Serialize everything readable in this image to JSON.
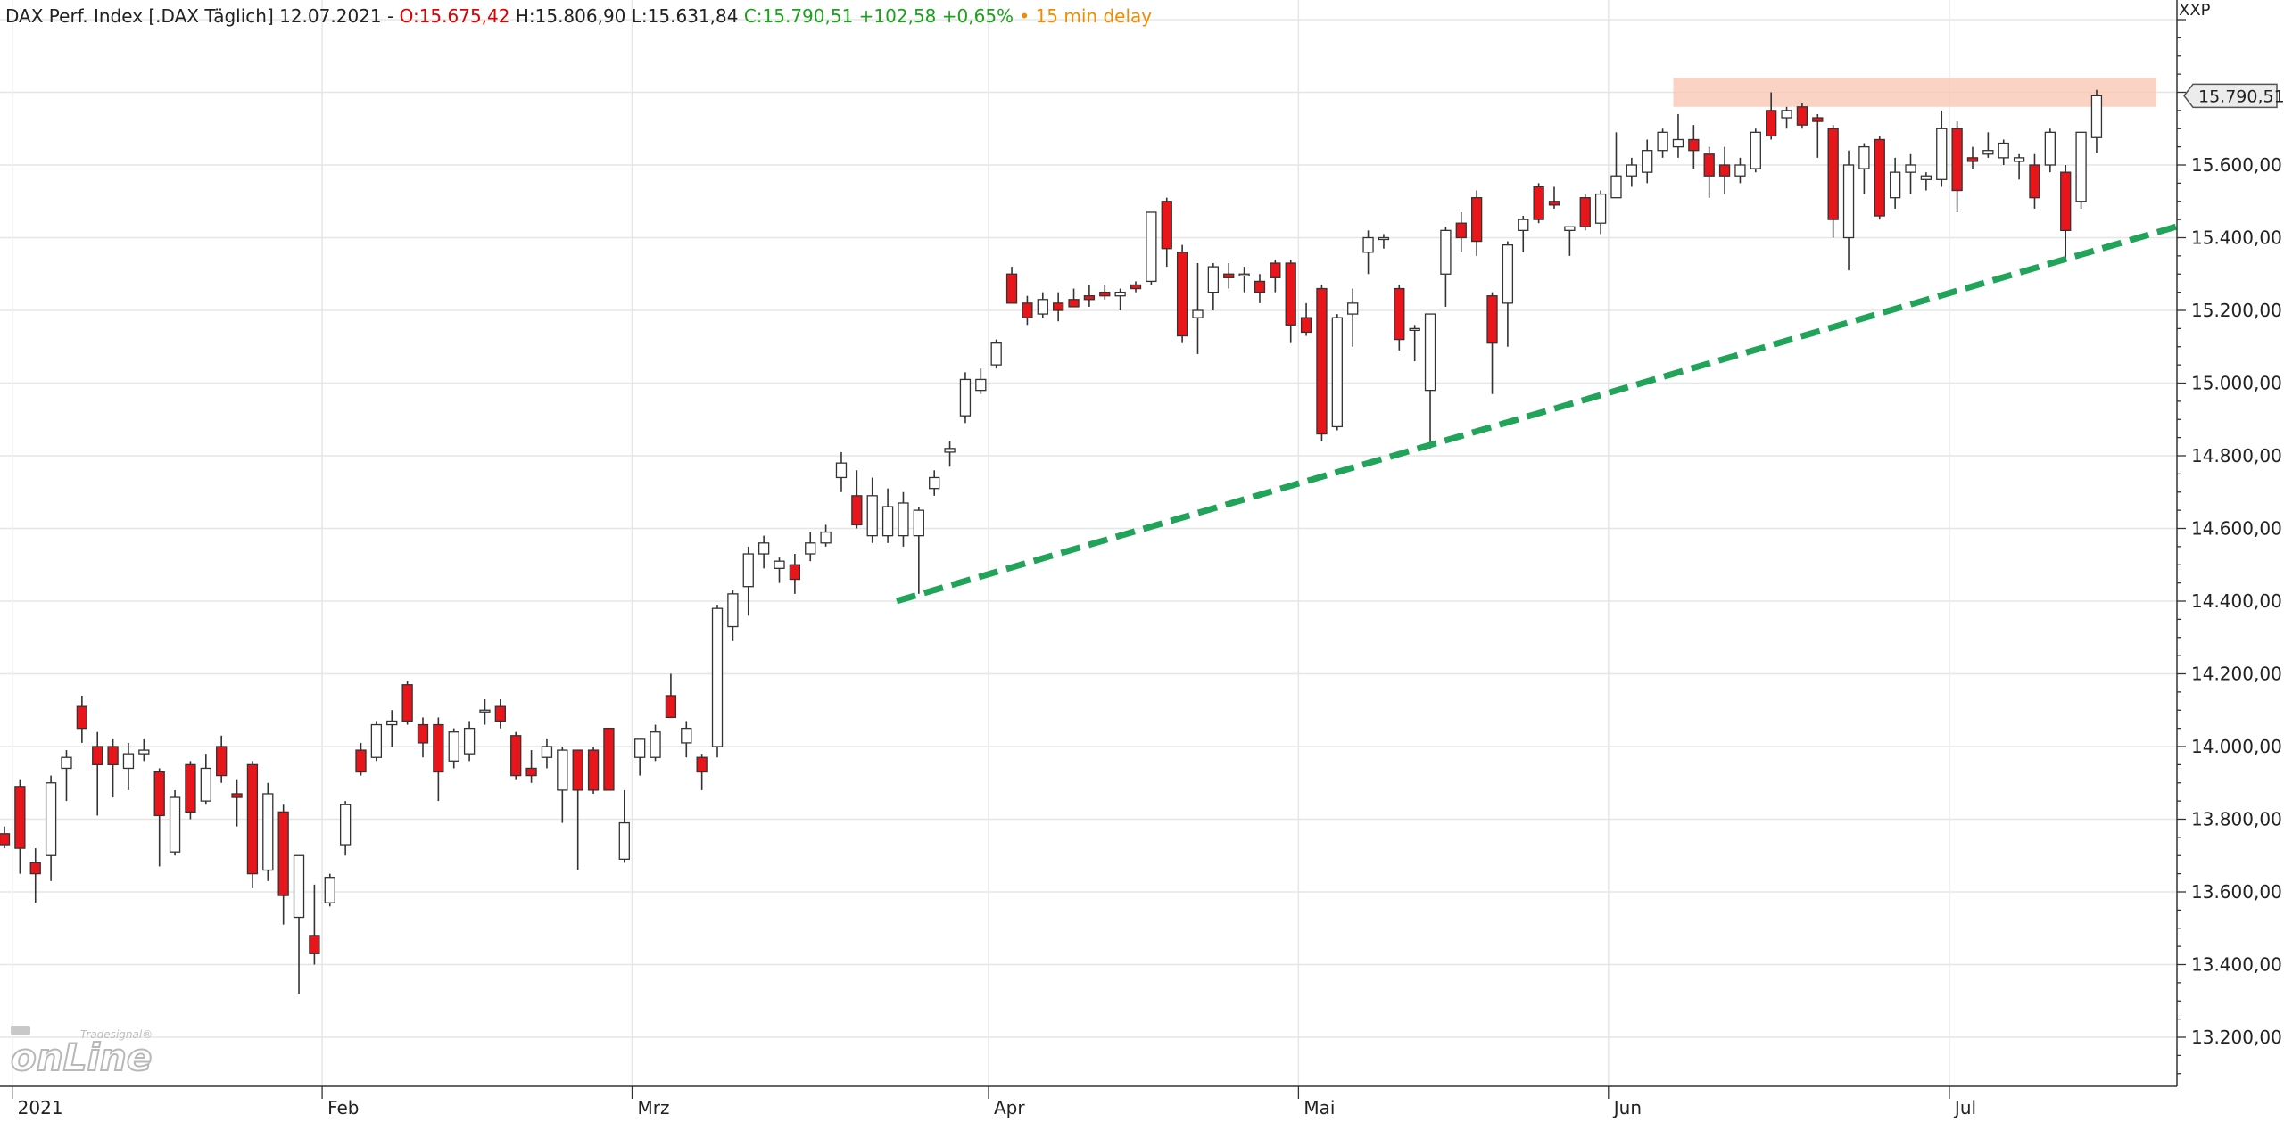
{
  "header": {
    "instrument": "DAX Perf. Index [.DAX Täglich] 12.07.2021 -",
    "open": "O:15.675,42",
    "high": "H:15.806,90",
    "low": "L:15.631,84",
    "close": "C:15.790,51 +102,58 +0,65%",
    "delay": "• 15 min delay"
  },
  "axis_title": "XXP",
  "last_price_badge": "15.790,51",
  "logo": {
    "small": "Tradesignal®",
    "big": "onLine"
  },
  "colors": {
    "up_fill": "#ffffff",
    "down_fill": "#e8151b",
    "wick": "#333333",
    "grid": "#e6e6e6",
    "trendline": "#21a35a",
    "resistance_zone": "#f9c4b0",
    "header_open": "#e00000",
    "header_close": "#1aa31a",
    "header_delay": "#f08c00"
  },
  "chart_data": {
    "type": "candlestick",
    "title": "DAX Perf. Index [.DAX Täglich]",
    "ylim": [
      13080,
      16100
    ],
    "yticks": [
      13200,
      13400,
      13600,
      13800,
      14000,
      14200,
      14400,
      14600,
      14800,
      15000,
      15200,
      15400,
      15600
    ],
    "ytick_labels": [
      "13.200,00",
      "13.400,00",
      "13.600,00",
      "13.800,00",
      "14.000,00",
      "14.200,00",
      "14.400,00",
      "14.600,00",
      "14.800,00",
      "15.000,00",
      "15.200,00",
      "15.400,00",
      "15.600,00"
    ],
    "xticks": [
      {
        "label": "2021",
        "index": 1
      },
      {
        "label": "Feb",
        "index": 21
      },
      {
        "label": "Mrz",
        "index": 41
      },
      {
        "label": "Apr",
        "index": 64
      },
      {
        "label": "Mai",
        "index": 84
      },
      {
        "label": "Jun",
        "index": 104
      },
      {
        "label": "Jul",
        "index": 126
      }
    ],
    "grid": true,
    "candles": [
      {
        "o": 13760,
        "h": 13780,
        "l": 13720,
        "c": 13730
      },
      {
        "o": 13890,
        "h": 13910,
        "l": 13650,
        "c": 13720
      },
      {
        "o": 13680,
        "h": 13720,
        "l": 13570,
        "c": 13650
      },
      {
        "o": 13700,
        "h": 13920,
        "l": 13630,
        "c": 13900
      },
      {
        "o": 13940,
        "h": 13990,
        "l": 13850,
        "c": 13970
      },
      {
        "o": 14110,
        "h": 14140,
        "l": 14010,
        "c": 14050
      },
      {
        "o": 14000,
        "h": 14040,
        "l": 13810,
        "c": 13950
      },
      {
        "o": 14000,
        "h": 14020,
        "l": 13860,
        "c": 13950
      },
      {
        "o": 13940,
        "h": 14010,
        "l": 13880,
        "c": 13980
      },
      {
        "o": 13980,
        "h": 14020,
        "l": 13960,
        "c": 13990
      },
      {
        "o": 13930,
        "h": 13940,
        "l": 13670,
        "c": 13810
      },
      {
        "o": 13710,
        "h": 13880,
        "l": 13700,
        "c": 13860
      },
      {
        "o": 13950,
        "h": 13960,
        "l": 13800,
        "c": 13820
      },
      {
        "o": 13850,
        "h": 13980,
        "l": 13840,
        "c": 13940
      },
      {
        "o": 14000,
        "h": 14030,
        "l": 13900,
        "c": 13920
      },
      {
        "o": 13870,
        "h": 13910,
        "l": 13780,
        "c": 13860
      },
      {
        "o": 13950,
        "h": 13960,
        "l": 13610,
        "c": 13650
      },
      {
        "o": 13660,
        "h": 13900,
        "l": 13630,
        "c": 13870
      },
      {
        "o": 13820,
        "h": 13840,
        "l": 13510,
        "c": 13590
      },
      {
        "o": 13530,
        "h": 13670,
        "l": 13320,
        "c": 13700
      },
      {
        "o": 13480,
        "h": 13620,
        "l": 13400,
        "c": 13430
      },
      {
        "o": 13570,
        "h": 13650,
        "l": 13560,
        "c": 13640
      },
      {
        "o": 13730,
        "h": 13850,
        "l": 13700,
        "c": 13840
      },
      {
        "o": 13990,
        "h": 14010,
        "l": 13920,
        "c": 13930
      },
      {
        "o": 13970,
        "h": 14070,
        "l": 13960,
        "c": 14060
      },
      {
        "o": 14060,
        "h": 14100,
        "l": 14000,
        "c": 14070
      },
      {
        "o": 14170,
        "h": 14180,
        "l": 14060,
        "c": 14070
      },
      {
        "o": 14060,
        "h": 14080,
        "l": 13970,
        "c": 14010
      },
      {
        "o": 14060,
        "h": 14080,
        "l": 13850,
        "c": 13930
      },
      {
        "o": 13960,
        "h": 14050,
        "l": 13940,
        "c": 14040
      },
      {
        "o": 13980,
        "h": 14070,
        "l": 13960,
        "c": 14050
      },
      {
        "o": 14100,
        "h": 14130,
        "l": 14060,
        "c": 14100
      },
      {
        "o": 14110,
        "h": 14130,
        "l": 14050,
        "c": 14070
      },
      {
        "o": 14030,
        "h": 14040,
        "l": 13910,
        "c": 13920
      },
      {
        "o": 13940,
        "h": 13990,
        "l": 13900,
        "c": 13920
      },
      {
        "o": 13970,
        "h": 14020,
        "l": 13940,
        "c": 14000
      },
      {
        "o": 13880,
        "h": 14000,
        "l": 13790,
        "c": 13990
      },
      {
        "o": 13990,
        "h": 13990,
        "l": 13660,
        "c": 13880
      },
      {
        "o": 13990,
        "h": 14000,
        "l": 13870,
        "c": 13880
      },
      {
        "o": 14050,
        "h": 14050,
        "l": 13880,
        "c": 13880
      },
      {
        "o": 13690,
        "h": 13880,
        "l": 13680,
        "c": 13790
      },
      {
        "o": 13970,
        "h": 14010,
        "l": 13920,
        "c": 14020
      },
      {
        "o": 13970,
        "h": 14060,
        "l": 13960,
        "c": 14040
      },
      {
        "o": 14140,
        "h": 14200,
        "l": 14080,
        "c": 14080
      },
      {
        "o": 14010,
        "h": 14070,
        "l": 13970,
        "c": 14050
      },
      {
        "o": 13970,
        "h": 13980,
        "l": 13880,
        "c": 13930
      },
      {
        "o": 14000,
        "h": 14390,
        "l": 13970,
        "c": 14380
      },
      {
        "o": 14330,
        "h": 14430,
        "l": 14290,
        "c": 14420
      },
      {
        "o": 14440,
        "h": 14550,
        "l": 14360,
        "c": 14530
      },
      {
        "o": 14530,
        "h": 14580,
        "l": 14490,
        "c": 14560
      },
      {
        "o": 14490,
        "h": 14520,
        "l": 14450,
        "c": 14510
      },
      {
        "o": 14500,
        "h": 14530,
        "l": 14420,
        "c": 14460
      },
      {
        "o": 14530,
        "h": 14590,
        "l": 14510,
        "c": 14560
      },
      {
        "o": 14560,
        "h": 14610,
        "l": 14550,
        "c": 14590
      },
      {
        "o": 14740,
        "h": 14810,
        "l": 14700,
        "c": 14780
      },
      {
        "o": 14690,
        "h": 14760,
        "l": 14600,
        "c": 14610
      },
      {
        "o": 14580,
        "h": 14740,
        "l": 14560,
        "c": 14690
      },
      {
        "o": 14580,
        "h": 14710,
        "l": 14560,
        "c": 14660
      },
      {
        "o": 14580,
        "h": 14700,
        "l": 14550,
        "c": 14670
      },
      {
        "o": 14580,
        "h": 14660,
        "l": 14420,
        "c": 14650
      },
      {
        "o": 14710,
        "h": 14760,
        "l": 14690,
        "c": 14740
      },
      {
        "o": 14810,
        "h": 14840,
        "l": 14770,
        "c": 14820
      },
      {
        "o": 14910,
        "h": 15030,
        "l": 14890,
        "c": 15010
      },
      {
        "o": 14980,
        "h": 15040,
        "l": 14970,
        "c": 15010
      },
      {
        "o": 15050,
        "h": 15120,
        "l": 15040,
        "c": 15110
      },
      {
        "o": 15300,
        "h": 15320,
        "l": 15220,
        "c": 15220
      },
      {
        "o": 15220,
        "h": 15240,
        "l": 15160,
        "c": 15180
      },
      {
        "o": 15190,
        "h": 15250,
        "l": 15180,
        "c": 15230
      },
      {
        "o": 15220,
        "h": 15250,
        "l": 15170,
        "c": 15200
      },
      {
        "o": 15230,
        "h": 15260,
        "l": 15210,
        "c": 15210
      },
      {
        "o": 15240,
        "h": 15270,
        "l": 15210,
        "c": 15230
      },
      {
        "o": 15250,
        "h": 15270,
        "l": 15230,
        "c": 15240
      },
      {
        "o": 15240,
        "h": 15260,
        "l": 15200,
        "c": 15250
      },
      {
        "o": 15270,
        "h": 15280,
        "l": 15250,
        "c": 15260
      },
      {
        "o": 15280,
        "h": 15470,
        "l": 15270,
        "c": 15470
      },
      {
        "o": 15500,
        "h": 15510,
        "l": 15320,
        "c": 15370
      },
      {
        "o": 15360,
        "h": 15380,
        "l": 15110,
        "c": 15130
      },
      {
        "o": 15180,
        "h": 15330,
        "l": 15080,
        "c": 15200
      },
      {
        "o": 15250,
        "h": 15330,
        "l": 15200,
        "c": 15320
      },
      {
        "o": 15300,
        "h": 15330,
        "l": 15260,
        "c": 15290
      },
      {
        "o": 15300,
        "h": 15320,
        "l": 15250,
        "c": 15300
      },
      {
        "o": 15280,
        "h": 15300,
        "l": 15220,
        "c": 15250
      },
      {
        "o": 15330,
        "h": 15340,
        "l": 15250,
        "c": 15290
      },
      {
        "o": 15330,
        "h": 15340,
        "l": 15110,
        "c": 15160
      },
      {
        "o": 15180,
        "h": 15220,
        "l": 15130,
        "c": 15140
      },
      {
        "o": 15260,
        "h": 15270,
        "l": 14840,
        "c": 14860
      },
      {
        "o": 14880,
        "h": 15190,
        "l": 14870,
        "c": 15180
      },
      {
        "o": 15190,
        "h": 15260,
        "l": 15100,
        "c": 15220
      },
      {
        "o": 15360,
        "h": 15420,
        "l": 15300,
        "c": 15400
      },
      {
        "o": 15400,
        "h": 15410,
        "l": 15370,
        "c": 15400
      },
      {
        "o": 15260,
        "h": 15270,
        "l": 15090,
        "c": 15120
      },
      {
        "o": 15150,
        "h": 15160,
        "l": 15060,
        "c": 15150
      },
      {
        "o": 14980,
        "h": 15190,
        "l": 14820,
        "c": 15190
      },
      {
        "o": 15300,
        "h": 15430,
        "l": 15210,
        "c": 15420
      },
      {
        "o": 15440,
        "h": 15470,
        "l": 15360,
        "c": 15400
      },
      {
        "o": 15510,
        "h": 15530,
        "l": 15350,
        "c": 15390
      },
      {
        "o": 15240,
        "h": 15250,
        "l": 14970,
        "c": 15110
      },
      {
        "o": 15220,
        "h": 15390,
        "l": 15100,
        "c": 15380
      },
      {
        "o": 15420,
        "h": 15460,
        "l": 15360,
        "c": 15450
      },
      {
        "o": 15540,
        "h": 15550,
        "l": 15440,
        "c": 15450
      },
      {
        "o": 15500,
        "h": 15540,
        "l": 15480,
        "c": 15490
      },
      {
        "o": 15420,
        "h": 15430,
        "l": 15350,
        "c": 15430
      },
      {
        "o": 15510,
        "h": 15520,
        "l": 15420,
        "c": 15430
      },
      {
        "o": 15440,
        "h": 15530,
        "l": 15410,
        "c": 15520
      },
      {
        "o": 15510,
        "h": 15690,
        "l": 15510,
        "c": 15570
      },
      {
        "o": 15570,
        "h": 15620,
        "l": 15540,
        "c": 15600
      },
      {
        "o": 15580,
        "h": 15670,
        "l": 15550,
        "c": 15640
      },
      {
        "o": 15640,
        "h": 15700,
        "l": 15620,
        "c": 15690
      },
      {
        "o": 15650,
        "h": 15740,
        "l": 15620,
        "c": 15670
      },
      {
        "o": 15670,
        "h": 15710,
        "l": 15590,
        "c": 15640
      },
      {
        "o": 15630,
        "h": 15650,
        "l": 15510,
        "c": 15570
      },
      {
        "o": 15600,
        "h": 15650,
        "l": 15520,
        "c": 15570
      },
      {
        "o": 15570,
        "h": 15620,
        "l": 15550,
        "c": 15600
      },
      {
        "o": 15590,
        "h": 15700,
        "l": 15580,
        "c": 15690
      },
      {
        "o": 15750,
        "h": 15800,
        "l": 15670,
        "c": 15680
      },
      {
        "o": 15730,
        "h": 15760,
        "l": 15700,
        "c": 15750
      },
      {
        "o": 15760,
        "h": 15770,
        "l": 15700,
        "c": 15710
      },
      {
        "o": 15730,
        "h": 15740,
        "l": 15620,
        "c": 15720
      },
      {
        "o": 15700,
        "h": 15710,
        "l": 15400,
        "c": 15450
      },
      {
        "o": 15400,
        "h": 15640,
        "l": 15310,
        "c": 15600
      },
      {
        "o": 15590,
        "h": 15660,
        "l": 15520,
        "c": 15650
      },
      {
        "o": 15670,
        "h": 15680,
        "l": 15450,
        "c": 15460
      },
      {
        "o": 15510,
        "h": 15620,
        "l": 15480,
        "c": 15580
      },
      {
        "o": 15580,
        "h": 15630,
        "l": 15520,
        "c": 15600
      },
      {
        "o": 15560,
        "h": 15580,
        "l": 15530,
        "c": 15570
      },
      {
        "o": 15560,
        "h": 15750,
        "l": 15540,
        "c": 15700
      },
      {
        "o": 15700,
        "h": 15720,
        "l": 15470,
        "c": 15530
      },
      {
        "o": 15620,
        "h": 15650,
        "l": 15590,
        "c": 15610
      },
      {
        "o": 15630,
        "h": 15690,
        "l": 15620,
        "c": 15640
      },
      {
        "o": 15620,
        "h": 15670,
        "l": 15600,
        "c": 15660
      },
      {
        "o": 15610,
        "h": 15630,
        "l": 15560,
        "c": 15620
      },
      {
        "o": 15600,
        "h": 15630,
        "l": 15480,
        "c": 15510
      },
      {
        "o": 15600,
        "h": 15700,
        "l": 15580,
        "c": 15690
      },
      {
        "o": 15580,
        "h": 15600,
        "l": 15340,
        "c": 15420
      },
      {
        "o": 15500,
        "h": 15690,
        "l": 15480,
        "c": 15690
      },
      {
        "o": 15675.42,
        "h": 15806.9,
        "l": 15631.84,
        "c": 15790.51
      }
    ],
    "trendline": {
      "from": {
        "index": 57,
        "value": 14410
      },
      "to": {
        "index": 140,
        "value": 15430
      }
    },
    "resistance_zone": {
      "from_index": 108,
      "to_index": 136,
      "low": 15760,
      "high": 15840
    }
  }
}
